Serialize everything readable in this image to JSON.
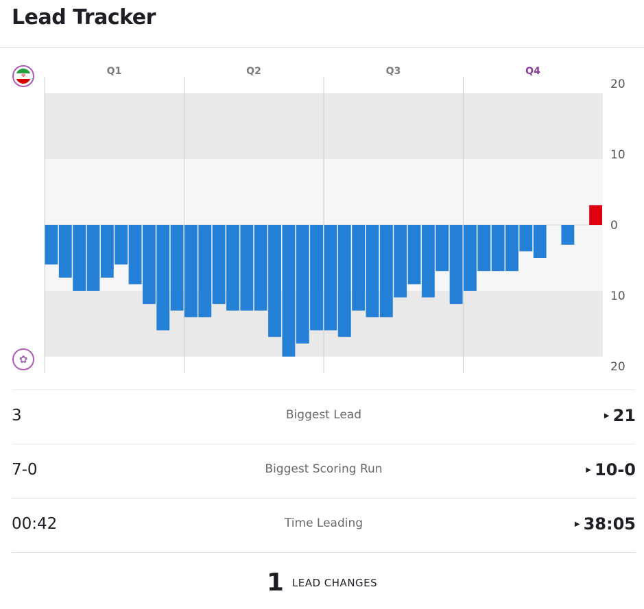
{
  "title": "Lead Tracker",
  "teams": {
    "top": {
      "icon": "iran-flag-icon"
    },
    "bottom": {
      "icon": "team-emblem-icon"
    }
  },
  "colors": {
    "top_team": "#e0000f",
    "bottom_team": "#2380d6",
    "current_quarter": "#8a3b9c"
  },
  "chart_data": {
    "type": "bar",
    "quarters": [
      "Q1",
      "Q2",
      "Q3",
      "Q4"
    ],
    "current_quarter": "Q4",
    "yticks": [
      "20",
      "10",
      "0",
      "10",
      "20"
    ],
    "ylim": [
      -20,
      20
    ],
    "grid": true,
    "margin_values": [
      -6,
      -8,
      -10,
      -10,
      -8,
      -6,
      -9,
      -12,
      -16,
      -13,
      -14,
      -14,
      -12,
      -13,
      -13,
      -13,
      -17,
      -20,
      -18,
      -16,
      -16,
      -17,
      -13,
      -14,
      -14,
      -11,
      -9,
      -11,
      -7,
      -12,
      -10,
      -7,
      -7,
      -7,
      -4,
      -5,
      0,
      -3,
      0,
      3
    ]
  },
  "stats": [
    {
      "label": "Biggest Lead",
      "top": "3",
      "bottom": "21",
      "leader": "bottom"
    },
    {
      "label": "Biggest Scoring Run",
      "top": "7-0",
      "bottom": "10-0",
      "leader": "bottom"
    },
    {
      "label": "Time Leading",
      "top": "00:42",
      "bottom": "38:05",
      "leader": "bottom"
    }
  ],
  "lead_changes": {
    "count": "1",
    "label": "LEAD CHANGES"
  }
}
